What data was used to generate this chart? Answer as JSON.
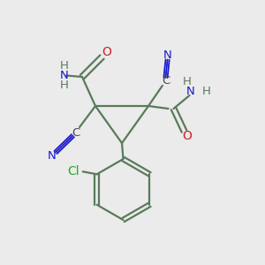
{
  "bg_color": "#ebebeb",
  "bond_color": "#5a7a5a",
  "bond_width": 1.6,
  "cC": "#4a4a4a",
  "cN": "#1a1acc",
  "cO": "#cc2222",
  "cH": "#5a7a5a",
  "cCl": "#22aa22",
  "fs": 9.5,
  "tl": [
    0.36,
    0.6
  ],
  "tr": [
    0.56,
    0.6
  ],
  "bt": [
    0.46,
    0.46
  ]
}
